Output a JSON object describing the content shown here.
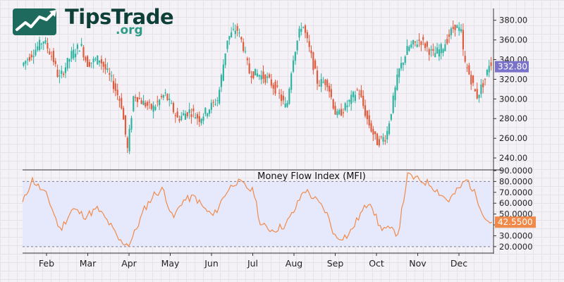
{
  "brand": {
    "name": "TipsTrade",
    "tld": ".org",
    "name_color": "#0e3f38",
    "accent_color": "#2d9b86"
  },
  "chart_data": [
    {
      "type": "candlestick",
      "title": "",
      "ylim": [
        230,
        392
      ],
      "y_ticks": [
        "240.00",
        "260.00",
        "280.00",
        "300.00",
        "320.00",
        "340.00",
        "360.00",
        "380.00"
      ],
      "last_price_label": "332.80",
      "last_price": 332.8,
      "up_color": "#2bb3a0",
      "down_color": "#e05a3d",
      "label_color": "#7b73c9",
      "grid": true,
      "path": [
        [
          0,
          334
        ],
        [
          0.3,
          345
        ],
        [
          0.7,
          360
        ],
        [
          1.0,
          342
        ],
        [
          1.2,
          320
        ],
        [
          1.6,
          345
        ],
        [
          1.9,
          355
        ],
        [
          2.1,
          336
        ],
        [
          2.5,
          341
        ],
        [
          2.9,
          318
        ],
        [
          3.2,
          295
        ],
        [
          3.4,
          248
        ],
        [
          3.6,
          305
        ],
        [
          3.9,
          296
        ],
        [
          4.2,
          290
        ],
        [
          4.6,
          305
        ],
        [
          5.0,
          280
        ],
        [
          5.4,
          288
        ],
        [
          5.7,
          280
        ],
        [
          6.0,
          290
        ],
        [
          6.3,
          300
        ],
        [
          6.6,
          361
        ],
        [
          6.9,
          372
        ],
        [
          7.1,
          355
        ],
        [
          7.3,
          327
        ],
        [
          7.6,
          325
        ],
        [
          7.9,
          320
        ],
        [
          8.2,
          308
        ],
        [
          8.5,
          290
        ],
        [
          8.7,
          341
        ],
        [
          9.0,
          378
        ],
        [
          9.3,
          342
        ],
        [
          9.5,
          316
        ],
        [
          9.8,
          318
        ],
        [
          10.1,
          282
        ],
        [
          10.4,
          292
        ],
        [
          10.8,
          310
        ],
        [
          11.1,
          278
        ],
        [
          11.4,
          256
        ],
        [
          11.7,
          262
        ],
        [
          12.1,
          328
        ],
        [
          12.4,
          352
        ],
        [
          12.8,
          360
        ],
        [
          13.2,
          345
        ],
        [
          13.5,
          352
        ],
        [
          13.9,
          375
        ],
        [
          14.1,
          368
        ],
        [
          14.2,
          338
        ],
        [
          14.4,
          322
        ],
        [
          14.6,
          302
        ],
        [
          14.9,
          322
        ],
        [
          15.0,
          336
        ]
      ]
    },
    {
      "type": "line",
      "title": "Money Flow Index (MFI)",
      "ylim": [
        16,
        90
      ],
      "y_ticks": [
        "20.0000",
        "30.0000",
        "40.0000",
        "50.0000",
        "60.0000",
        "70.0000",
        "80.0000",
        "90.0000"
      ],
      "overbought": 80,
      "oversold": 20,
      "last_value_label": "42.5500",
      "last_value": 42.55,
      "line_color": "#f08a4b",
      "band_color": "#e6e9fb",
      "months": [
        "Feb",
        "Mar",
        "Apr",
        "May",
        "Jun",
        "Jul",
        "Aug",
        "Sep",
        "Oct",
        "Nov",
        "Dec"
      ],
      "path": [
        [
          0,
          60
        ],
        [
          0.3,
          82
        ],
        [
          0.8,
          66
        ],
        [
          1.2,
          35
        ],
        [
          1.6,
          55
        ],
        [
          2.0,
          48
        ],
        [
          2.4,
          55
        ],
        [
          2.8,
          40
        ],
        [
          3.1,
          25
        ],
        [
          3.4,
          22
        ],
        [
          3.6,
          34
        ],
        [
          3.9,
          55
        ],
        [
          4.2,
          68
        ],
        [
          4.5,
          73
        ],
        [
          4.8,
          45
        ],
        [
          5.1,
          62
        ],
        [
          5.5,
          66
        ],
        [
          5.8,
          55
        ],
        [
          6.1,
          48
        ],
        [
          6.5,
          70
        ],
        [
          6.8,
          80
        ],
        [
          7.0,
          78
        ],
        [
          7.4,
          70
        ],
        [
          7.6,
          40
        ],
        [
          8.0,
          35
        ],
        [
          8.4,
          40
        ],
        [
          8.7,
          54
        ],
        [
          9.0,
          73
        ],
        [
          9.4,
          62
        ],
        [
          9.7,
          52
        ],
        [
          10.0,
          28
        ],
        [
          10.4,
          30
        ],
        [
          10.8,
          50
        ],
        [
          11.1,
          63
        ],
        [
          11.4,
          38
        ],
        [
          11.7,
          36
        ],
        [
          12.0,
          32
        ],
        [
          12.3,
          86
        ],
        [
          12.6,
          82
        ],
        [
          13.0,
          78
        ],
        [
          13.3,
          70
        ],
        [
          13.6,
          62
        ],
        [
          13.9,
          72
        ],
        [
          14.2,
          82
        ],
        [
          14.5,
          66
        ],
        [
          14.8,
          45
        ],
        [
          15.0,
          42.55
        ]
      ]
    }
  ]
}
